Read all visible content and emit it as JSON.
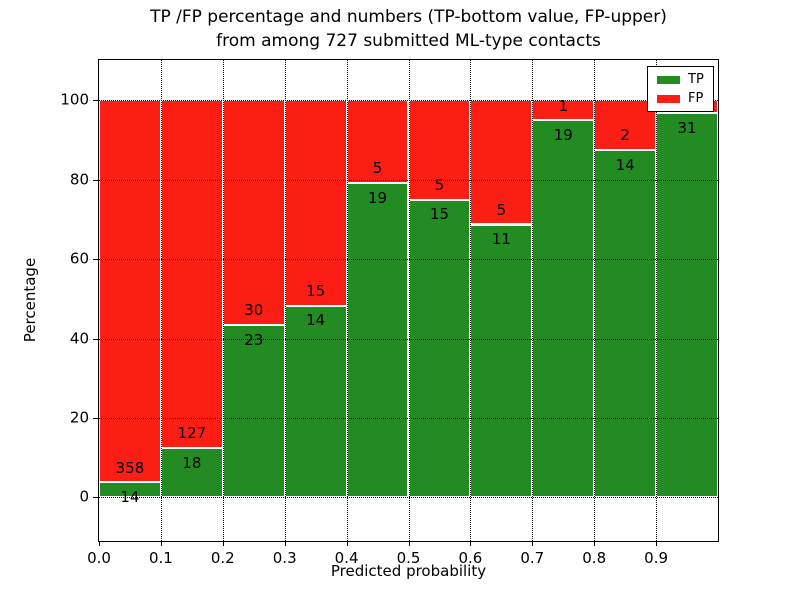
{
  "chart_data": {
    "type": "bar",
    "stacked": true,
    "title_line1": "TP /FP percentage and numbers (TP-bottom value, FP-upper)",
    "title_line2": "from among 727 submitted ML-type contacts",
    "xlabel": "Predicted probability",
    "ylabel": "Percentage",
    "total_contacts": 727,
    "x_tick_labels": [
      "0.0",
      "0.1",
      "0.2",
      "0.3",
      "0.4",
      "0.5",
      "0.6",
      "0.7",
      "0.8",
      "0.9"
    ],
    "y_tick_values": [
      0,
      20,
      40,
      60,
      80,
      100
    ],
    "xlim": [
      0.0,
      1.0
    ],
    "ylim": [
      -11,
      110.2
    ],
    "bin_width": 0.1,
    "grid": "dotted",
    "legend_position": "upper right",
    "series": [
      {
        "name": "TP",
        "color": "#228b22",
        "counts": [
          14,
          18,
          23,
          14,
          19,
          15,
          11,
          19,
          14,
          31
        ]
      },
      {
        "name": "FP",
        "color": "#fc1d14",
        "counts": [
          358,
          127,
          30,
          15,
          5,
          5,
          5,
          1,
          2,
          1
        ]
      }
    ],
    "tp_percentages": [
      3.8,
      12.4,
      43.4,
      48.3,
      79.2,
      75.0,
      68.8,
      95.0,
      87.5,
      96.9
    ]
  }
}
